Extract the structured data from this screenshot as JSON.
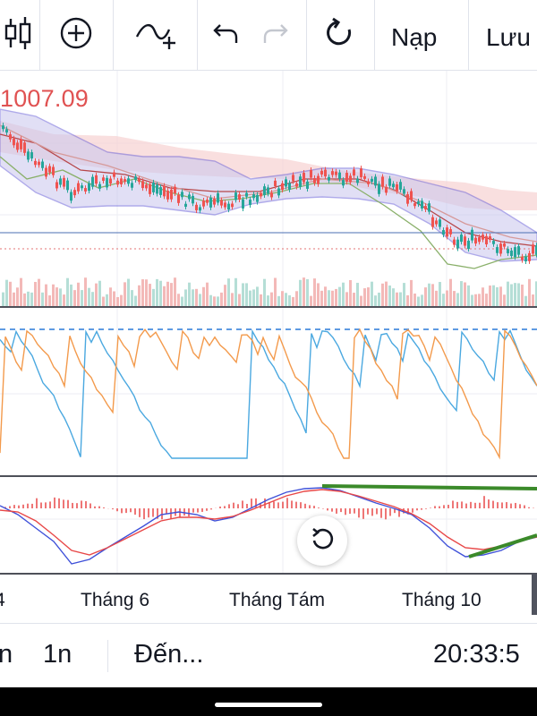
{
  "toolbar": {
    "buttons": [
      {
        "name": "candlestick-chart-type-icon"
      },
      {
        "name": "add-indicator-icon"
      },
      {
        "name": "indicator-wave-plus-icon"
      },
      {
        "name": "undo-icon"
      },
      {
        "name": "redo-icon"
      },
      {
        "name": "refresh-icon"
      }
    ],
    "load_label": "Nạp",
    "save_label": "Lưu"
  },
  "chart": {
    "price_label": "1007.09",
    "price_label_color": "#e05252",
    "time_axis": {
      "left_cut": "4",
      "labels": [
        "Tháng 6",
        "Tháng Tám",
        "Tháng 10"
      ]
    },
    "colors": {
      "up": "#26a69a",
      "down": "#ef5350",
      "cloud_red": "#f4c7c7",
      "cloud_blue": "#c9c6ee",
      "osc_blue": "#4aa8e0",
      "osc_orange": "#f39a4c",
      "macd_blue": "#3f51d9",
      "macd_red": "#e84848",
      "trendline_green": "#3b8a2a"
    }
  },
  "bottom_bar": {
    "interval_1": "n",
    "interval_2": "1n",
    "goto_label": "Đến...",
    "clock": "20:33:5"
  }
}
